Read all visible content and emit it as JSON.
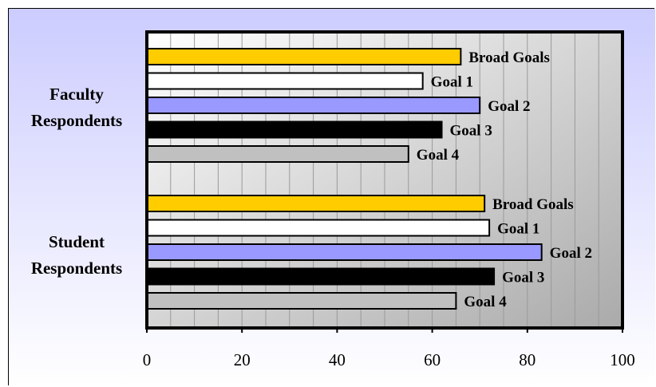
{
  "chart_data": {
    "type": "bar",
    "orientation": "horizontal",
    "grid": true,
    "xlim": [
      0,
      100
    ],
    "ticks": [
      "0",
      "20",
      "40",
      "60",
      "80",
      "100"
    ],
    "series_labels": [
      "Broad Goals",
      "Goal 1",
      "Goal 2",
      "Goal 3",
      "Goal 4"
    ],
    "colors": [
      "#FFCC00",
      "#FFFFFF",
      "#9999FF",
      "#000000",
      "#C0C0C0"
    ],
    "groups": [
      {
        "label_lines": [
          "Faculty",
          "Respondents"
        ],
        "values": [
          66,
          58,
          70,
          62,
          55
        ]
      },
      {
        "label_lines": [
          "Student",
          "Respondents"
        ],
        "values": [
          71,
          72,
          83,
          73,
          65
        ]
      }
    ]
  }
}
